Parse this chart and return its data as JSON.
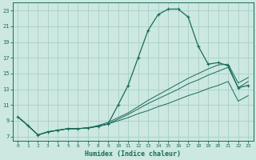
{
  "xlabel": "Humidex (Indice chaleur)",
  "bg_color": "#cce8e0",
  "grid_color": "#a8d0c8",
  "line_color": "#1a6b5a",
  "xlim": [
    -0.5,
    23.5
  ],
  "ylim": [
    6.5,
    24.0
  ],
  "xticks": [
    0,
    1,
    2,
    3,
    4,
    5,
    6,
    7,
    8,
    9,
    10,
    11,
    12,
    13,
    14,
    15,
    16,
    17,
    18,
    19,
    20,
    21,
    22,
    23
  ],
  "yticks": [
    7,
    9,
    11,
    13,
    15,
    17,
    19,
    21,
    23
  ],
  "curve1_x": [
    0,
    1,
    2,
    3,
    4,
    5,
    6,
    7,
    8,
    9,
    10,
    11,
    12,
    13,
    14,
    15,
    16,
    17,
    18,
    19,
    20,
    21,
    22,
    23
  ],
  "curve1_y": [
    9.5,
    8.4,
    7.2,
    7.6,
    7.8,
    8.0,
    8.0,
    8.1,
    8.3,
    8.6,
    11.0,
    13.5,
    17.0,
    20.5,
    22.5,
    23.2,
    23.2,
    22.2,
    18.5,
    16.2,
    16.4,
    16.0,
    13.2,
    13.5
  ],
  "curve2_x": [
    0,
    1,
    2,
    3,
    4,
    5,
    6,
    7,
    8,
    9,
    10,
    11,
    12,
    13,
    14,
    15,
    16,
    17,
    18,
    19,
    20,
    21,
    22,
    23
  ],
  "curve2_y": [
    9.5,
    8.4,
    7.2,
    7.6,
    7.8,
    8.0,
    8.0,
    8.1,
    8.3,
    8.6,
    9.0,
    9.4,
    9.9,
    10.3,
    10.8,
    11.2,
    11.7,
    12.2,
    12.6,
    13.1,
    13.5,
    14.0,
    11.5,
    12.2
  ],
  "curve3_x": [
    0,
    1,
    2,
    3,
    4,
    5,
    6,
    7,
    8,
    9,
    10,
    11,
    12,
    13,
    14,
    15,
    16,
    17,
    18,
    19,
    20,
    21,
    22,
    23
  ],
  "curve3_y": [
    9.5,
    8.4,
    7.2,
    7.6,
    7.8,
    8.0,
    8.0,
    8.1,
    8.3,
    8.6,
    9.2,
    9.8,
    10.5,
    11.2,
    11.8,
    12.4,
    13.0,
    13.7,
    14.2,
    14.8,
    15.3,
    15.8,
    13.2,
    14.0
  ],
  "curve4_x": [
    0,
    1,
    2,
    3,
    4,
    5,
    6,
    7,
    8,
    9,
    10,
    11,
    12,
    13,
    14,
    15,
    16,
    17,
    18,
    19,
    20,
    21,
    22,
    23
  ],
  "curve4_y": [
    9.5,
    8.4,
    7.2,
    7.6,
    7.8,
    8.0,
    8.0,
    8.1,
    8.4,
    8.8,
    9.4,
    10.0,
    10.8,
    11.6,
    12.3,
    13.0,
    13.7,
    14.4,
    15.0,
    15.6,
    16.1,
    16.2,
    13.8,
    14.5
  ]
}
